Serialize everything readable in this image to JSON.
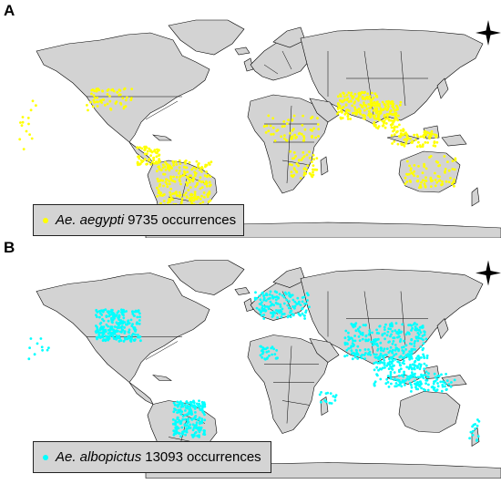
{
  "panels": [
    {
      "letter": "A",
      "species": "Ae. aegypti",
      "count": "9735",
      "unit": "occurrences",
      "color": "#ffff00"
    },
    {
      "letter": "B",
      "species": "Ae. albopictus",
      "count": "13093",
      "unit": "occurrences",
      "color": "#00ffff"
    }
  ],
  "map_colors": {
    "land": "#d3d3d3",
    "border": "#000000",
    "ocean": "#ffffff"
  },
  "icons": {
    "compass": "north-arrow-compass-icon"
  }
}
